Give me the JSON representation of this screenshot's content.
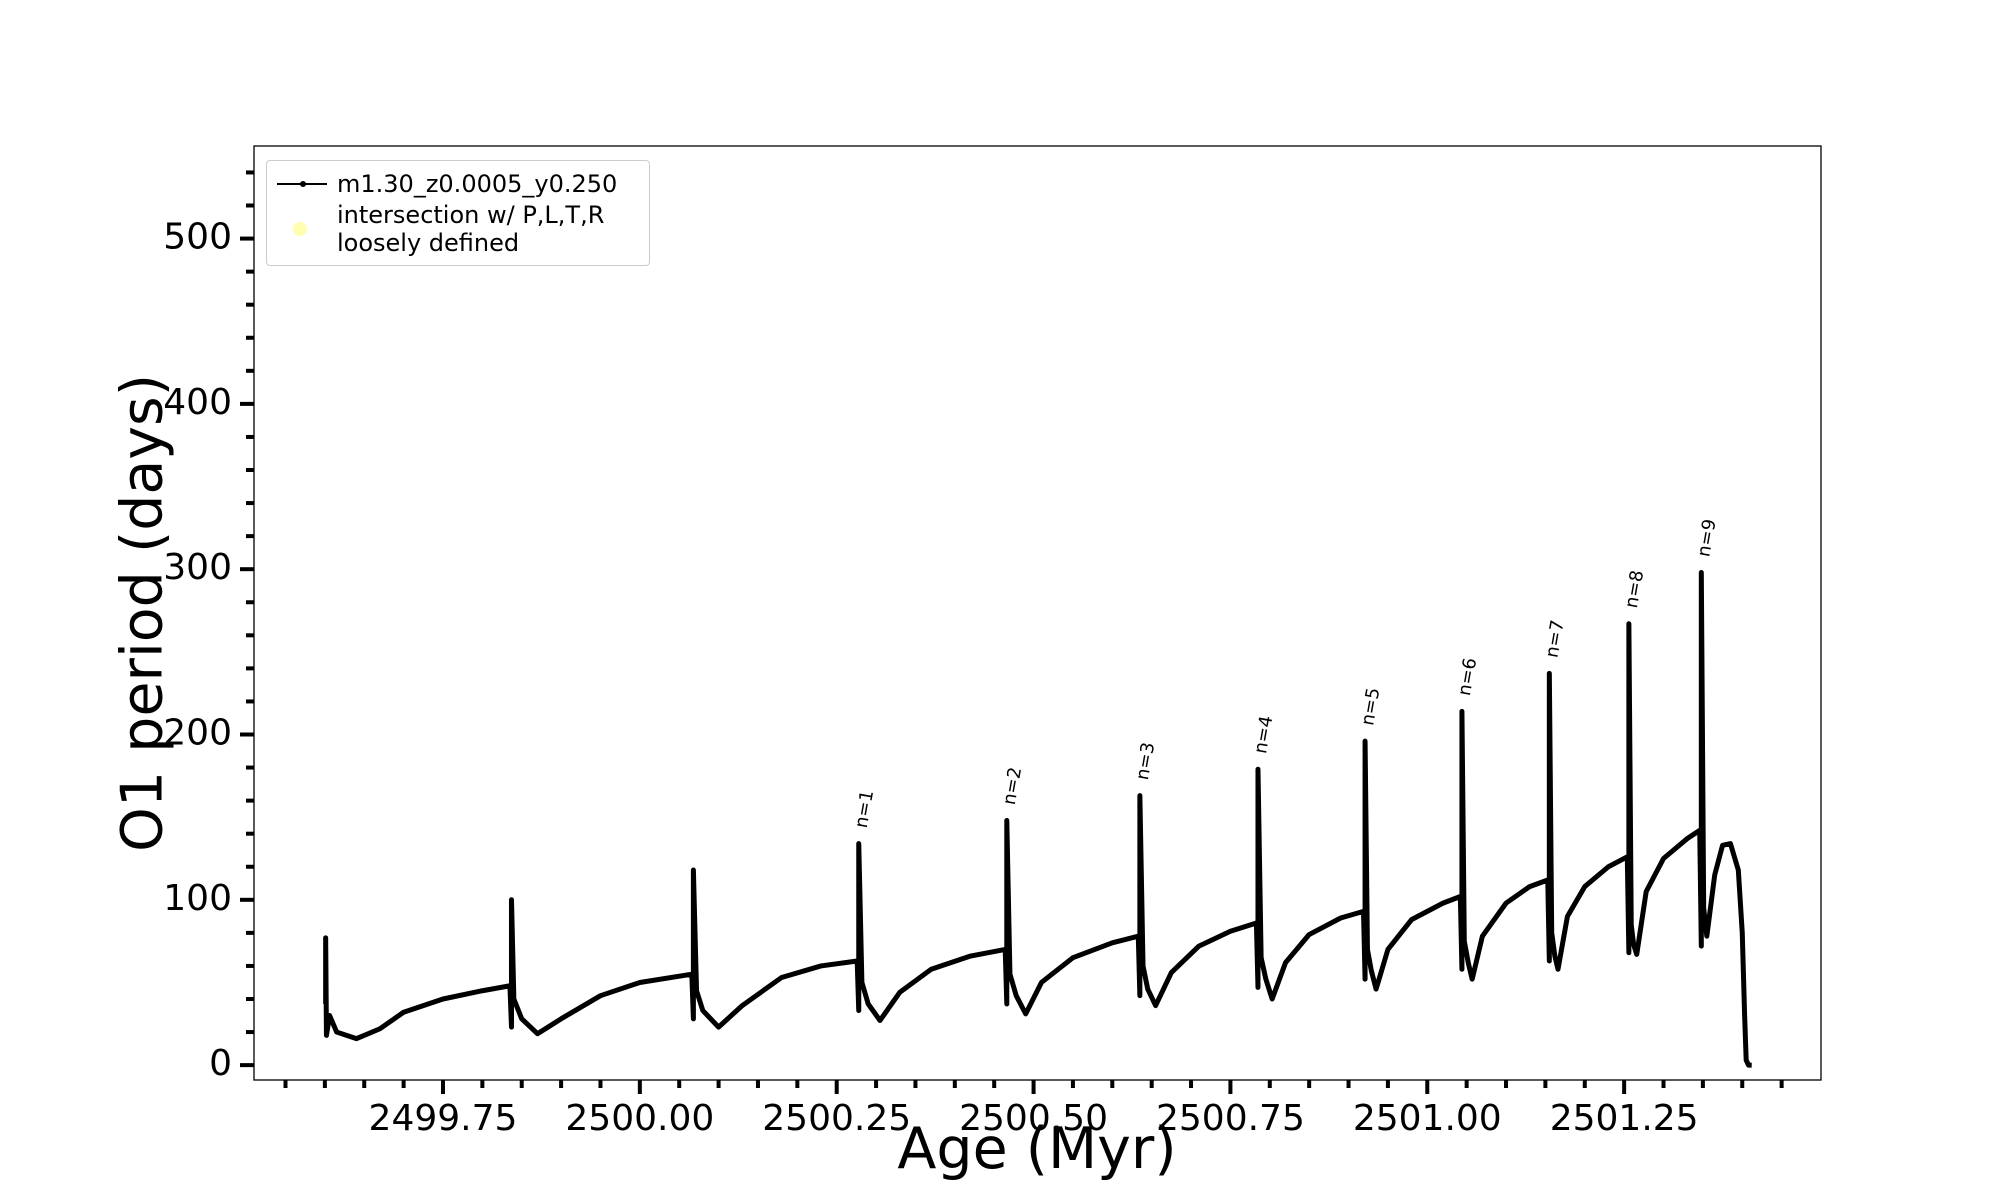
{
  "chart_data": {
    "type": "line",
    "xlabel": "Age (Myr)",
    "ylabel": "O1 period (days)",
    "xlim": [
      2499.51,
      2501.5
    ],
    "ylim": [
      -9,
      556
    ],
    "xticks": [
      {
        "value": 2499.75,
        "label": "2499.75"
      },
      {
        "value": 2500.0,
        "label": "2500.00"
      },
      {
        "value": 2500.25,
        "label": "2500.25"
      },
      {
        "value": 2500.5,
        "label": "2500.50"
      },
      {
        "value": 2500.75,
        "label": "2500.75"
      },
      {
        "value": 2501.0,
        "label": "2501.00"
      },
      {
        "value": 2501.25,
        "label": "2501.25"
      }
    ],
    "yticks": [
      0,
      100,
      200,
      300,
      400,
      500
    ],
    "xminorticks": [
      2499.55,
      2499.6,
      2499.65,
      2499.7,
      2499.8,
      2499.85,
      2499.9,
      2499.95,
      2500.05,
      2500.1,
      2500.15,
      2500.2,
      2500.3,
      2500.35,
      2500.4,
      2500.45,
      2500.55,
      2500.6,
      2500.65,
      2500.7,
      2500.8,
      2500.85,
      2500.9,
      2500.95,
      2501.05,
      2501.1,
      2501.15,
      2501.2,
      2501.3,
      2501.35,
      2501.4,
      2501.45
    ],
    "yminorticks": [
      20,
      40,
      60,
      80,
      120,
      140,
      160,
      180,
      220,
      240,
      260,
      280,
      320,
      340,
      360,
      380,
      420,
      440,
      460,
      480,
      520,
      540
    ],
    "legend": "upper left",
    "series": [
      {
        "name": "m1.30_z0.0005_y0.250",
        "color": "#000000",
        "x": [
          2499.601,
          2499.601,
          2499.602,
          2499.606,
          2499.615,
          2499.64,
          2499.67,
          2499.7,
          2499.75,
          2499.8,
          2499.835,
          2499.837,
          2499.837,
          2499.84,
          2499.85,
          2499.87,
          2499.9,
          2499.95,
          2500.0,
          2500.066,
          2500.068,
          2500.068,
          2500.072,
          2500.08,
          2500.1,
          2500.13,
          2500.18,
          2500.23,
          2500.276,
          2500.278,
          2500.278,
          2500.282,
          2500.29,
          2500.305,
          2500.33,
          2500.37,
          2500.42,
          2500.464,
          2500.466,
          2500.466,
          2500.47,
          2500.478,
          2500.49,
          2500.51,
          2500.55,
          2500.6,
          2500.633,
          2500.635,
          2500.635,
          2500.639,
          2500.645,
          2500.655,
          2500.675,
          2500.71,
          2500.75,
          2500.783,
          2500.785,
          2500.785,
          2500.789,
          2500.795,
          2500.803,
          2500.82,
          2500.85,
          2500.89,
          2500.919,
          2500.921,
          2500.921,
          2500.924,
          2500.929,
          2500.935,
          2500.95,
          2500.98,
          2501.02,
          2501.042,
          2501.044,
          2501.044,
          2501.047,
          2501.052,
          2501.057,
          2501.07,
          2501.1,
          2501.13,
          2501.153,
          2501.155,
          2501.155,
          2501.158,
          2501.162,
          2501.166,
          2501.178,
          2501.2,
          2501.23,
          2501.254,
          2501.256,
          2501.256,
          2501.259,
          2501.262,
          2501.266,
          2501.278,
          2501.3,
          2501.33,
          2501.346,
          2501.348,
          2501.348,
          2501.351,
          2501.355,
          2501.365,
          2501.375,
          2501.385,
          2501.395,
          2501.4,
          2501.403,
          2501.405,
          2501.408,
          2501.412
        ],
        "values": [
          37,
          77,
          18,
          30,
          20,
          16,
          22,
          32,
          40,
          45,
          48,
          23,
          100,
          40,
          28,
          19,
          28,
          42,
          50,
          55,
          28,
          118,
          45,
          33,
          23,
          36,
          53,
          60,
          63,
          33,
          134,
          50,
          37,
          27,
          44,
          58,
          66,
          70,
          37,
          148,
          55,
          42,
          31,
          50,
          65,
          74,
          78,
          42,
          163,
          60,
          46,
          36,
          56,
          72,
          81,
          86,
          47,
          179,
          65,
          52,
          40,
          62,
          79,
          89,
          93,
          52,
          196,
          70,
          57,
          46,
          70,
          88,
          98,
          102,
          58,
          214,
          75,
          62,
          52,
          78,
          98,
          108,
          112,
          63,
          237,
          80,
          66,
          58,
          90,
          108,
          120,
          126,
          68,
          267,
          85,
          73,
          67,
          105,
          125,
          137,
          142,
          72,
          298,
          95,
          78,
          115,
          133,
          134,
          118,
          80,
          30,
          3,
          0,
          0
        ]
      },
      {
        "name": "intersection w/ P,L,T,R\nloosely defined",
        "color": "#fffdb0",
        "x": [],
        "values": []
      }
    ],
    "annotations": [
      {
        "text": "n=1",
        "x": 2500.288,
        "y": 143
      },
      {
        "text": "n=2",
        "x": 2500.476,
        "y": 157
      },
      {
        "text": "n=3",
        "x": 2500.645,
        "y": 172
      },
      {
        "text": "n=4",
        "x": 2500.795,
        "y": 188
      },
      {
        "text": "n=5",
        "x": 2500.931,
        "y": 205
      },
      {
        "text": "n=6",
        "x": 2501.054,
        "y": 223
      },
      {
        "text": "n=7",
        "x": 2501.165,
        "y": 246
      },
      {
        "text": "n=8",
        "x": 2501.266,
        "y": 276
      },
      {
        "text": "n=9",
        "x": 2501.358,
        "y": 307
      }
    ]
  }
}
